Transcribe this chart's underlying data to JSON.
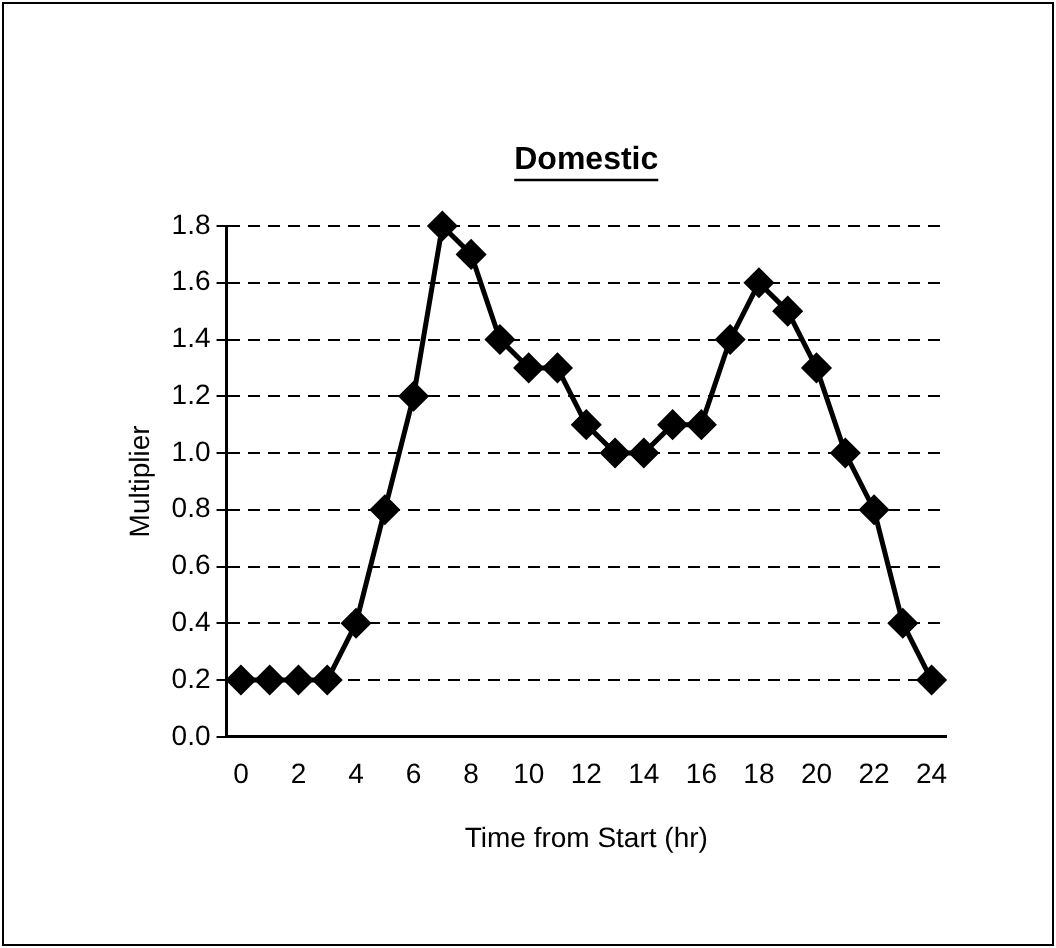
{
  "chart_data": {
    "type": "line",
    "title": "Domestic",
    "xlabel": "Time from Start (hr)",
    "ylabel": "Multiplier",
    "x": [
      0,
      1,
      2,
      3,
      4,
      5,
      6,
      7,
      8,
      9,
      10,
      11,
      12,
      13,
      14,
      15,
      16,
      17,
      18,
      19,
      20,
      21,
      22,
      23,
      24
    ],
    "series": [
      {
        "color": "#000000",
        "values": [
          0.2,
          0.2,
          0.2,
          0.2,
          0.4,
          0.8,
          1.2,
          1.8,
          1.7,
          1.4,
          1.3,
          1.3,
          1.1,
          1.0,
          1.0,
          1.1,
          1.1,
          1.4,
          1.6,
          1.5,
          1.3,
          1.0,
          0.8,
          0.4,
          0.2
        ]
      }
    ],
    "xlim": [
      -0.5,
      24.5
    ],
    "xticks": [
      0,
      2,
      4,
      6,
      8,
      10,
      12,
      14,
      16,
      18,
      20,
      22,
      24
    ],
    "ylim": [
      0,
      1.8
    ],
    "yticks": [
      {
        "value": 0,
        "label": "0.0"
      },
      {
        "value": 0.2,
        "label": "0.2"
      },
      {
        "value": 0.4,
        "label": "0.4"
      },
      {
        "value": 0.6,
        "label": "0.6"
      },
      {
        "value": 0.8,
        "label": "0.8"
      },
      {
        "value": 1,
        "label": "1.0"
      },
      {
        "value": 1.2,
        "label": "1.2"
      },
      {
        "value": 1.4,
        "label": "1.4"
      },
      {
        "value": 1.6,
        "label": "1.6"
      },
      {
        "value": 1.8,
        "label": "1.8"
      }
    ],
    "grid": "y",
    "legend": false,
    "marker": "diamond",
    "line_style": "solid"
  }
}
